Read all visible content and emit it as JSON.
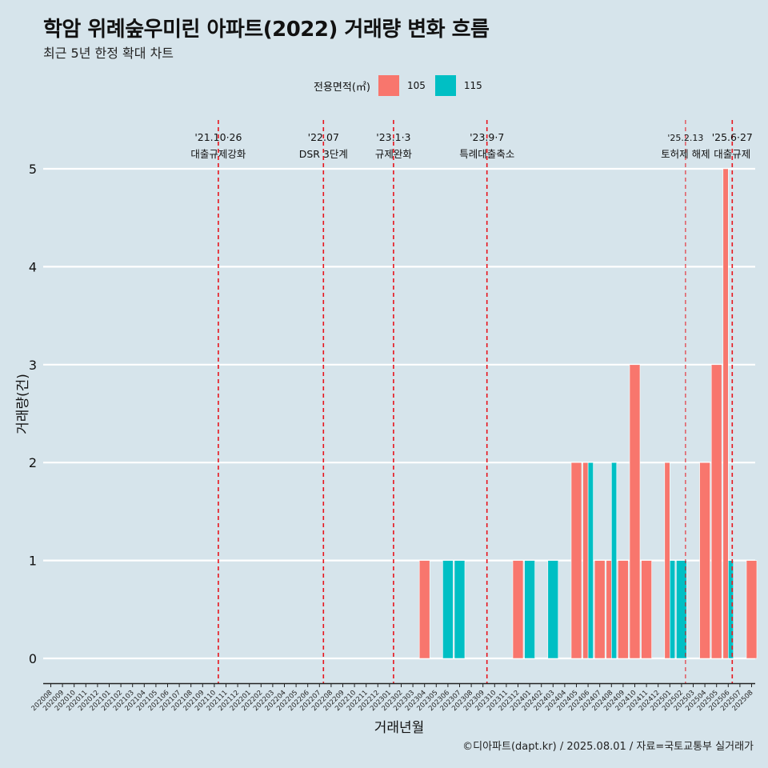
{
  "title": "학암 위례숲우미린 아파트(2022) 거래량 변화 흐름",
  "subtitle": "최근 5년 한정 확대 차트",
  "caption": "©디아파트(dapt.kr) / 2025.08.01 / 자료=국토교통부 실거래가",
  "legend": {
    "title": "전용면적(㎡)",
    "items": [
      {
        "label": "105",
        "color": "#f8766d"
      },
      {
        "label": "115",
        "color": "#00bfc4"
      }
    ]
  },
  "chart_data": {
    "type": "bar",
    "xlabel": "거래년월",
    "ylabel": "거래량(건)",
    "ylim": [
      0,
      5
    ],
    "yticks": [
      0,
      1,
      2,
      3,
      4,
      5
    ],
    "grid": true,
    "legend_position": "top",
    "categories": [
      "202008",
      "202009",
      "202010",
      "202011",
      "202012",
      "202101",
      "202102",
      "202103",
      "202104",
      "202105",
      "202106",
      "202107",
      "202108",
      "202109",
      "202110",
      "202111",
      "202112",
      "202201",
      "202202",
      "202203",
      "202204",
      "202205",
      "202206",
      "202207",
      "202208",
      "202209",
      "202210",
      "202211",
      "202212",
      "202301",
      "202302",
      "202303",
      "202304",
      "202305",
      "202306",
      "202307",
      "202308",
      "202309",
      "202310",
      "202311",
      "202312",
      "202401",
      "202402",
      "202403",
      "202404",
      "202405",
      "202406",
      "202407",
      "202408",
      "202409",
      "202410",
      "202411",
      "202412",
      "202501",
      "202502",
      "202503",
      "202504",
      "202505",
      "202506",
      "202507",
      "202508"
    ],
    "series": [
      {
        "name": "105",
        "color": "#f8766d",
        "values": [
          0,
          0,
          0,
          0,
          0,
          0,
          0,
          0,
          0,
          0,
          0,
          0,
          0,
          0,
          0,
          0,
          0,
          0,
          0,
          0,
          0,
          0,
          0,
          0,
          0,
          0,
          0,
          0,
          0,
          0,
          0,
          0,
          1,
          0,
          0,
          0,
          0,
          0,
          0,
          0,
          1,
          0,
          0,
          0,
          0,
          2,
          2,
          1,
          1,
          1,
          3,
          1,
          0,
          2,
          0,
          0,
          2,
          3,
          5,
          0,
          1
        ]
      },
      {
        "name": "115",
        "color": "#00bfc4",
        "values": [
          0,
          0,
          0,
          0,
          0,
          0,
          0,
          0,
          0,
          0,
          0,
          0,
          0,
          0,
          0,
          0,
          0,
          0,
          0,
          0,
          0,
          0,
          0,
          0,
          0,
          0,
          0,
          0,
          0,
          0,
          0,
          0,
          0,
          0,
          1,
          1,
          0,
          0,
          0,
          0,
          0,
          1,
          0,
          1,
          0,
          0,
          2,
          0,
          2,
          0,
          0,
          0,
          0,
          1,
          1,
          0,
          0,
          0,
          1,
          0,
          0
        ]
      }
    ],
    "annotations": [
      {
        "x": "202110",
        "date": "'21.10·26",
        "label": "대출규제강화"
      },
      {
        "x": "202207",
        "date": "'22.07",
        "label": "DSR 3단계"
      },
      {
        "x": "202301",
        "date": "'23.1·3",
        "label": "규제완화"
      },
      {
        "x": "202309",
        "date": "'23.9·7",
        "label": "특례대출축소"
      },
      {
        "x": "202502",
        "date": "'25.2.13",
        "label": "토허제 해제"
      },
      {
        "x": "202506",
        "date": "'25.6·27",
        "label": "대출규제"
      }
    ]
  }
}
